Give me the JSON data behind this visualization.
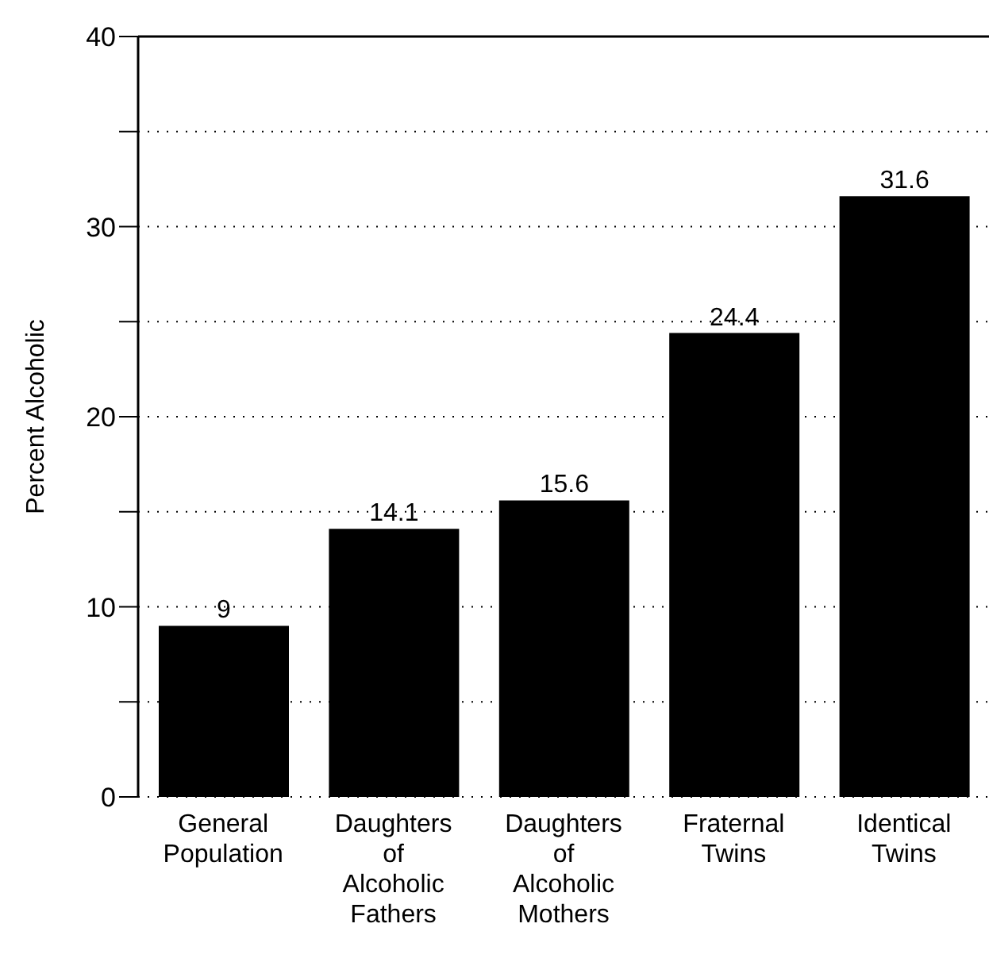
{
  "chart_data": {
    "type": "bar",
    "ylabel": "Percent Alcoholic",
    "categories": [
      "General Population",
      "Daughters of Alcoholic Fathers",
      "Daughters of Alcoholic Mothers",
      "Fraternal Twins",
      "Identical Twins"
    ],
    "values": [
      9,
      14.1,
      15.6,
      24.4,
      31.6
    ],
    "color": "#000000",
    "ylim": [
      0,
      40
    ],
    "yticks": [
      0,
      {
        "value": 5,
        "label": null
      },
      10,
      {
        "value": 15,
        "label": null
      },
      20,
      {
        "value": 25,
        "label": null
      },
      30,
      {
        "value": 35,
        "label": null
      },
      40
    ],
    "grid": "y",
    "data_labels": true
  }
}
